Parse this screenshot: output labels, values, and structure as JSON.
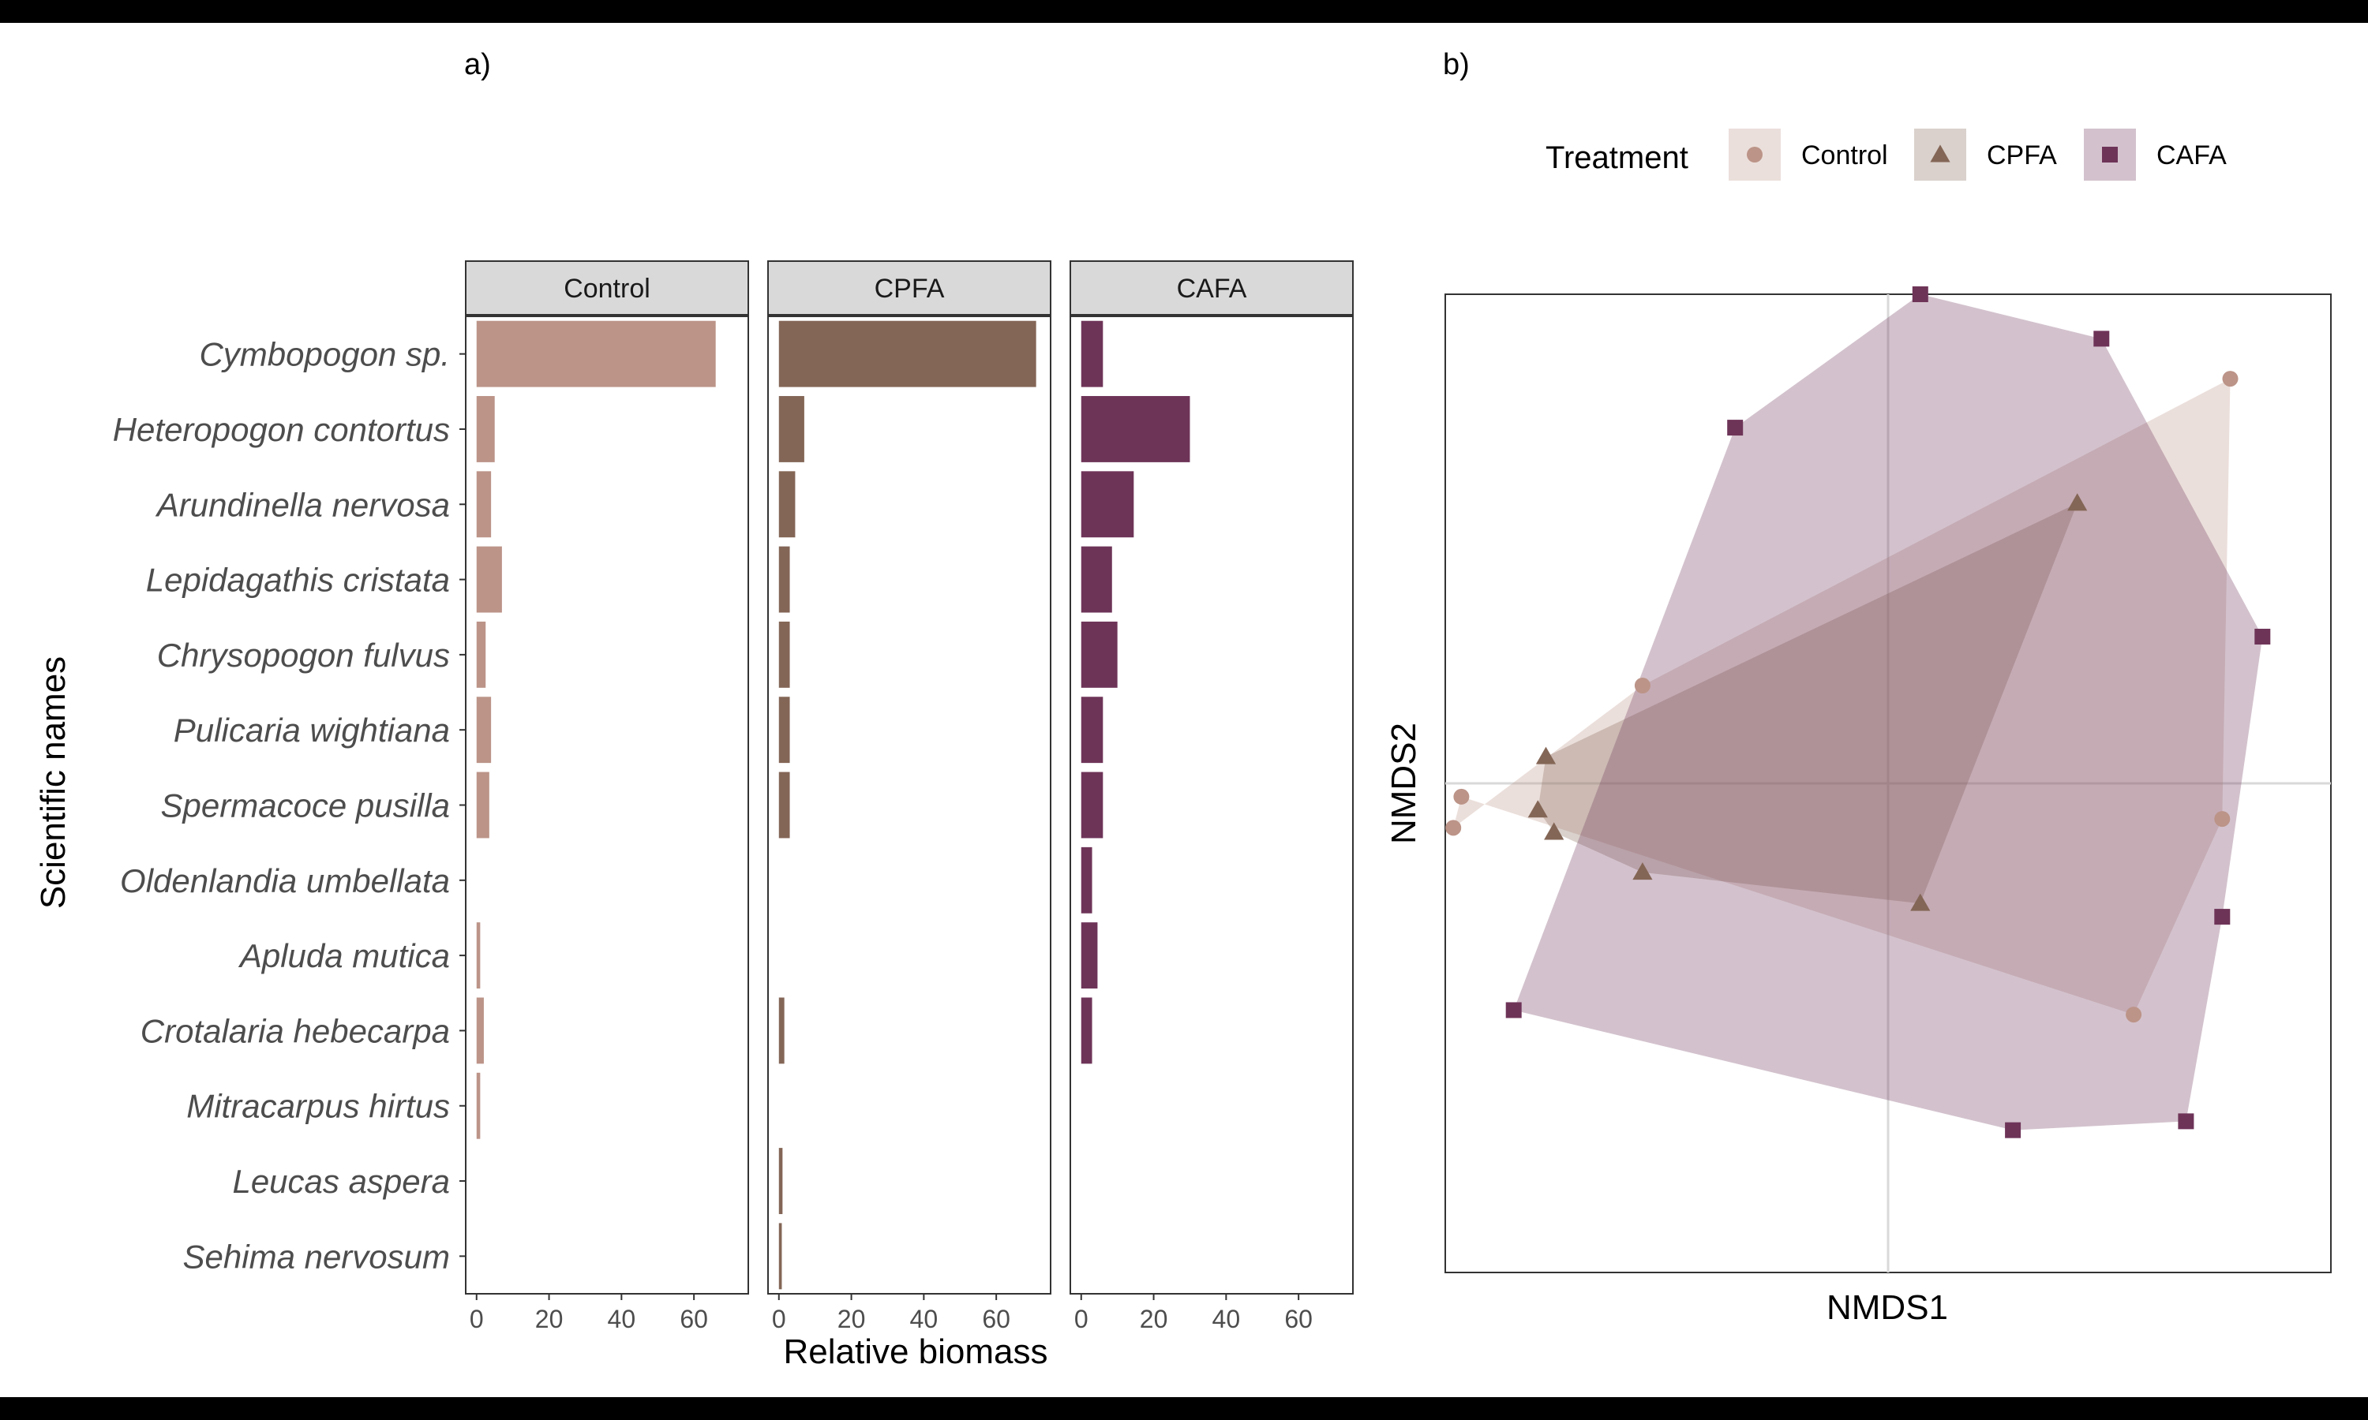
{
  "panels": {
    "a": "a)",
    "b": "b)"
  },
  "colors": {
    "Control": "#bc9488",
    "CPFA": "#846656",
    "CAFA": "#6e3458"
  },
  "chart_data": [
    {
      "type": "bar",
      "orientation": "horizontal",
      "panel": "a)",
      "facets": [
        "Control",
        "CPFA",
        "CAFA"
      ],
      "categories": [
        "Cymbopogon sp.",
        "Heteropogon contortus",
        "Arundinella nervosa",
        "Lepidagathis cristata",
        "Chrysopogon fulvus",
        "Pulicaria wightiana",
        "Spermacoce pusilla",
        "Oldenlandia umbellata",
        "Apluda mutica",
        "Crotalaria hebecarpa",
        "Mitracarpus hirtus",
        "Leucas aspera",
        "Sehima nervosum"
      ],
      "series": [
        {
          "name": "Control",
          "values": [
            66,
            5,
            4,
            7,
            2.5,
            4,
            3.5,
            0,
            1,
            2,
            1,
            0,
            0
          ]
        },
        {
          "name": "CPFA",
          "values": [
            71,
            7,
            4.5,
            3,
            3,
            3,
            3,
            0,
            0,
            1.5,
            0,
            1,
            0.8
          ]
        },
        {
          "name": "CAFA",
          "values": [
            6,
            30,
            14.5,
            8.5,
            10,
            6,
            6,
            3,
            4.5,
            3,
            0,
            0,
            0
          ]
        }
      ],
      "xlabel": "Relative biomass",
      "ylabel": "Scientific names",
      "xticks": [
        0,
        20,
        40,
        60
      ],
      "xlim": [
        -3,
        75
      ],
      "grid": false
    },
    {
      "type": "scatter",
      "panel": "b)",
      "xlabel": "NMDS1",
      "ylabel": "NMDS2",
      "xlim": [
        -1.1,
        1.1
      ],
      "ylim": [
        -1.1,
        1.1
      ],
      "reference_lines": {
        "x": 0,
        "y": 0
      },
      "hulls": true,
      "legend": {
        "title": "Treatment",
        "position": "top"
      },
      "series": [
        {
          "name": "Control",
          "marker": "circle",
          "x": [
            -1.06,
            -1.08,
            -0.61,
            0.85,
            0.83,
            0.61
          ],
          "y": [
            -0.03,
            -0.1,
            0.22,
            0.91,
            -0.08,
            -0.52
          ],
          "hull": [
            [
              -1.08,
              -0.1
            ],
            [
              -0.61,
              0.22
            ],
            [
              0.85,
              0.91
            ],
            [
              0.83,
              -0.08
            ],
            [
              0.61,
              -0.52
            ],
            [
              -1.06,
              -0.03
            ]
          ]
        },
        {
          "name": "CPFA",
          "marker": "triangle",
          "x": [
            -0.85,
            -0.87,
            -0.83,
            -0.61,
            0.47,
            0.08
          ],
          "y": [
            0.06,
            -0.06,
            -0.11,
            -0.2,
            0.63,
            -0.27
          ],
          "hull": [
            [
              -0.87,
              -0.06
            ],
            [
              -0.85,
              0.06
            ],
            [
              0.47,
              0.63
            ],
            [
              0.08,
              -0.27
            ],
            [
              -0.61,
              -0.2
            ],
            [
              -0.83,
              -0.11
            ]
          ]
        },
        {
          "name": "CAFA",
          "marker": "square",
          "x": [
            0.53,
            0.08,
            -0.38,
            0.93,
            0.83,
            -0.93,
            0.31,
            0.74
          ],
          "y": [
            1.0,
            1.1,
            0.8,
            0.33,
            -0.3,
            -0.51,
            -0.78,
            -0.76
          ],
          "hull": [
            [
              0.53,
              1.0
            ],
            [
              0.93,
              0.33
            ],
            [
              0.83,
              -0.3
            ],
            [
              0.74,
              -0.76
            ],
            [
              0.31,
              -0.78
            ],
            [
              -0.93,
              -0.51
            ],
            [
              -0.38,
              0.8
            ],
            [
              0.08,
              1.1
            ]
          ]
        }
      ]
    }
  ]
}
